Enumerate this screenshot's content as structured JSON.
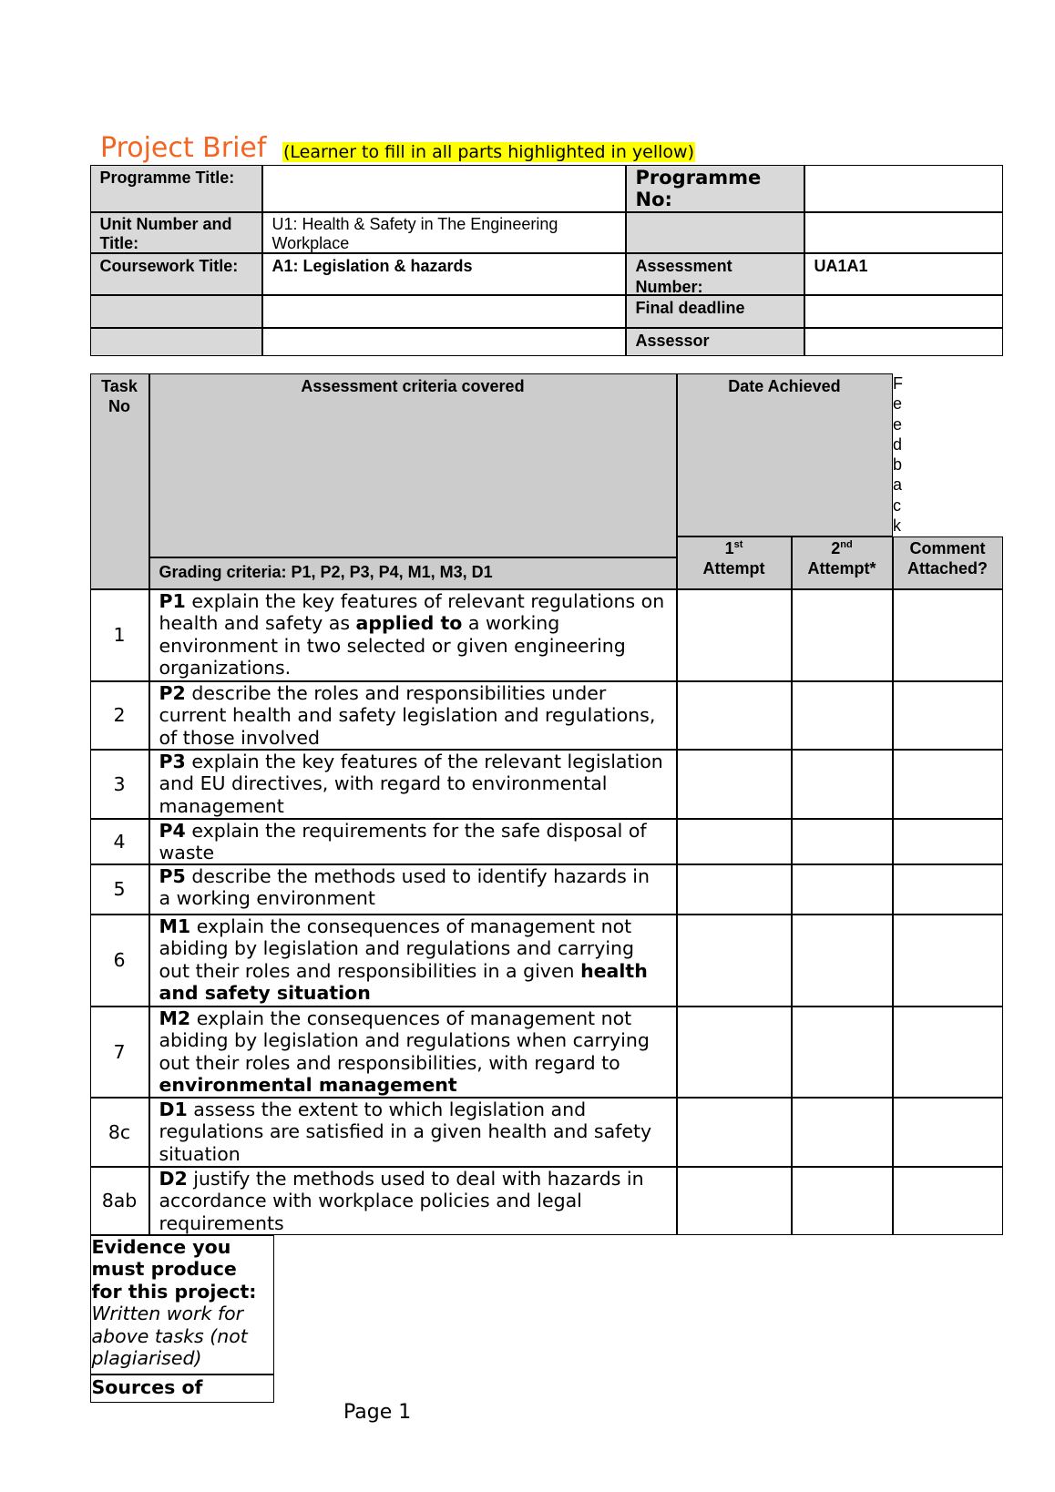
{
  "header": {
    "title": "Project Brief",
    "instruction": "(Learner to fill in all parts highlighted in yellow)",
    "title_color": "#f26522",
    "highlight_color": "#ffff00"
  },
  "info_table": {
    "programme_title_label": "Programme Title:",
    "programme_title_value": "",
    "programme_no_label": "Programme No:",
    "programme_no_value": "",
    "unit_label": "Unit Number and Title:",
    "unit_value": "U1: Health & Safety in The Engineering Workplace",
    "coursework_label": "Coursework Title:",
    "coursework_value": "A1: Legislation & hazards",
    "assessment_number_label": "Assessment Number:",
    "assessment_number_value": "UA1A1",
    "final_deadline_label": "Final deadline",
    "final_deadline_value": "",
    "assessor_label": "Assessor",
    "assessor_value": ""
  },
  "criteria_table": {
    "task_no_header": "Task No",
    "criteria_header": "Assessment criteria covered",
    "grading_criteria": "Grading criteria: P1, P2, P3, P4, M1, M3, D1",
    "date_achieved_header": "Date Achieved",
    "feedback_header": "Feedback",
    "first_attempt_num": "1",
    "first_attempt_sup": "st",
    "first_attempt_label": "Attempt",
    "second_attempt_num": "2",
    "second_attempt_sup": "nd",
    "second_attempt_label": "Attempt*",
    "comment_header": "Comment Attached?",
    "rows": [
      {
        "task": "1",
        "segments": [
          {
            "b": true,
            "t": "P1"
          },
          {
            "t": " explain the key features of relevant regulations on health and safety as "
          },
          {
            "b": true,
            "t": "applied to"
          },
          {
            "t": " a working environment in two selected or given engineering organizations."
          }
        ]
      },
      {
        "task": "2",
        "segments": [
          {
            "b": true,
            "t": "P2"
          },
          {
            "t": " describe the roles and responsibilities under current health and safety legislation and regulations, of those involved"
          }
        ]
      },
      {
        "task": "3",
        "segments": [
          {
            "b": true,
            "t": "P3"
          },
          {
            "t": " explain the key features of the relevant legislation and EU directives, with regard to environmental management"
          }
        ]
      },
      {
        "task": "4",
        "segments": [
          {
            "b": true,
            "t": "P4"
          },
          {
            "t": " explain the requirements for the safe disposal of waste"
          }
        ]
      },
      {
        "task": "5",
        "segments": [
          {
            "b": true,
            "t": "P5"
          },
          {
            "t": " describe the methods used to identify hazards in a working environment"
          }
        ]
      },
      {
        "task": "6",
        "segments": [
          {
            "b": true,
            "t": "M1"
          },
          {
            "t": " explain the consequences of management not abiding by legislation and regulations and carrying out their roles and responsibilities in a given "
          },
          {
            "b": true,
            "t": "health and safety situation"
          }
        ]
      },
      {
        "task": "7",
        "segments": [
          {
            "b": true,
            "t": "M2"
          },
          {
            "t": " explain the consequences of management not abiding by legislation and regulations when carrying out their roles and responsibilities, with regard to "
          },
          {
            "b": true,
            "t": "environmental management"
          }
        ]
      },
      {
        "task": "8c",
        "segments": [
          {
            "b": true,
            "t": "D1"
          },
          {
            "t": " assess the extent to which legislation and regulations are satisfied in a given health and safety situation"
          }
        ]
      },
      {
        "task": "8ab",
        "segments": [
          {
            "b": true,
            "t": "D2"
          },
          {
            "t": " justify the methods used to deal with hazards in accordance with workplace policies and legal requirements"
          }
        ]
      }
    ]
  },
  "evidence": {
    "heading": "Evidence you must produce for this project:",
    "text": "Written work for above tasks (not plagiarised)",
    "sources_heading": "Sources of"
  },
  "footer": {
    "page_label": "Page 1"
  }
}
